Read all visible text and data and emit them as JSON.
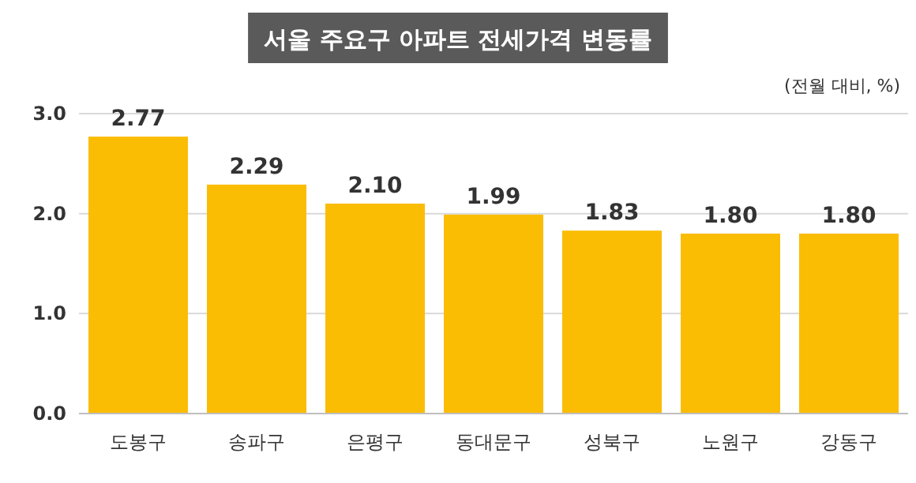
{
  "chart_data": {
    "type": "bar",
    "title": "서울 주요구 아파트 전세가격 변동률",
    "subtitle": "(전월 대비, %)",
    "categories": [
      "도봉구",
      "송파구",
      "은평구",
      "동대문구",
      "성북구",
      "노원구",
      "강동구"
    ],
    "values": [
      2.77,
      2.29,
      2.1,
      1.99,
      1.83,
      1.8,
      1.8
    ],
    "color": "#fbbc04",
    "ylim": [
      0,
      3.0
    ],
    "yticks": [
      {
        "value": 0,
        "label": "0.0"
      },
      {
        "value": 1,
        "label": "1.0"
      },
      {
        "value": 2,
        "label": "2.0"
      },
      {
        "value": 3,
        "label": "3.0"
      }
    ],
    "value_labels": [
      "2.77",
      "2.29",
      "2.10",
      "1.99",
      "1.83",
      "1.80",
      "1.80"
    ],
    "grid": "y"
  }
}
